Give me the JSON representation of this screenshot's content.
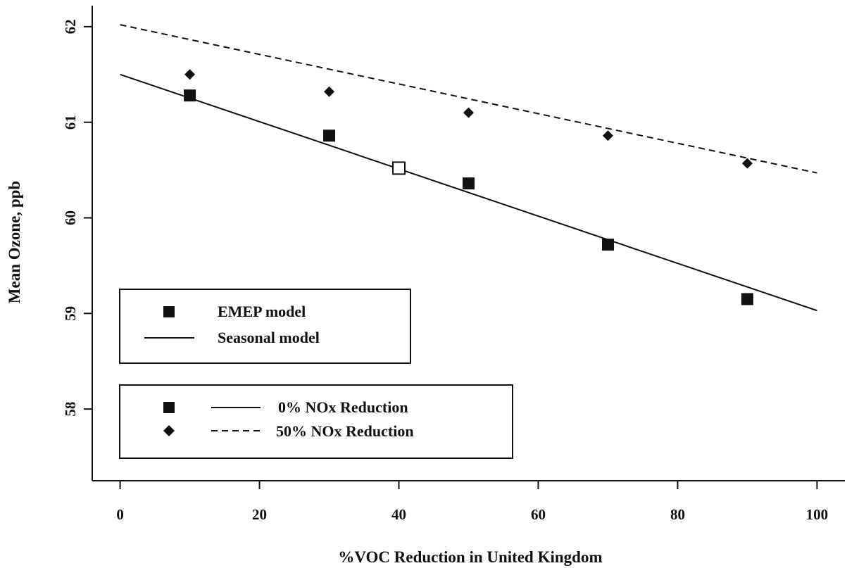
{
  "chart_data": {
    "type": "scatter",
    "title": "",
    "xlabel": "%VOC Reduction in United Kingdom",
    "ylabel": "Mean Ozone, ppb",
    "xlim": [
      -4,
      104
    ],
    "ylim": [
      57.25,
      62.22
    ],
    "x_ticks": [
      0,
      20,
      40,
      60,
      80,
      100
    ],
    "y_ticks": [
      58,
      59,
      60,
      61,
      62
    ],
    "x_tick_labels": [
      "0",
      "20",
      "40",
      "60",
      "80",
      "100"
    ],
    "y_tick_labels": [
      "58",
      "59",
      "60",
      "61",
      "62"
    ],
    "grid": false,
    "series": [
      {
        "name": "0% NOx Reduction",
        "kind": "points",
        "marker": "square",
        "x": [
          10,
          30,
          50,
          70,
          90
        ],
        "y": [
          61.28,
          60.86,
          60.36,
          59.72,
          59.15
        ]
      },
      {
        "name": "50% NOx Reduction",
        "kind": "points",
        "marker": "diamond",
        "x": [
          10,
          30,
          50,
          70,
          90
        ],
        "y": [
          61.5,
          61.32,
          61.1,
          60.86,
          60.57
        ]
      },
      {
        "name": "0% NOx Reduction",
        "kind": "line",
        "style": "solid",
        "x": [
          0,
          100
        ],
        "y": [
          61.5,
          59.03
        ]
      },
      {
        "name": "50% NOx Reduction",
        "kind": "line",
        "style": "dashed",
        "x": [
          0,
          100
        ],
        "y": [
          62.02,
          60.47
        ]
      },
      {
        "name": "",
        "kind": "points",
        "marker": "open-square",
        "x": [
          40
        ],
        "y": [
          60.52
        ]
      }
    ],
    "legends": [
      {
        "placement": "lower-left",
        "entries": [
          {
            "label": "EMEP model",
            "symbol": "square"
          },
          {
            "label": "Seasonal model",
            "symbol": "solid-line"
          }
        ]
      },
      {
        "placement": "bottom-left",
        "entries": [
          {
            "label": "0% NOx Reduction",
            "symbols": [
              "square",
              "solid-line"
            ]
          },
          {
            "label": "50% NOx Reduction",
            "symbols": [
              "diamond",
              "dashed-line"
            ]
          }
        ]
      }
    ]
  }
}
